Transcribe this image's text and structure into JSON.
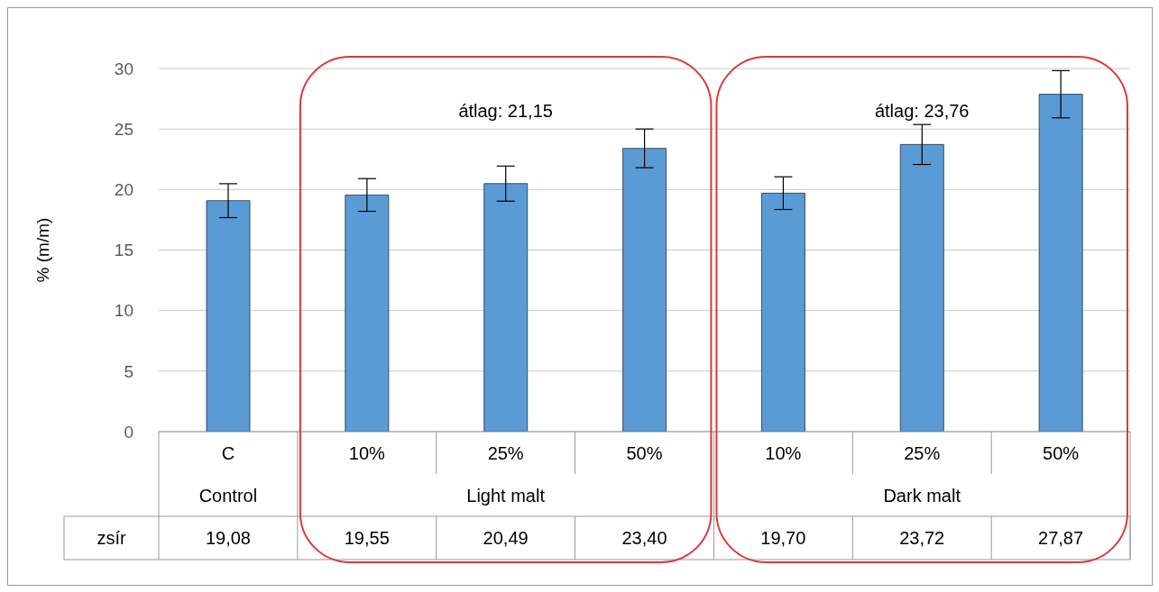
{
  "chart_data": {
    "type": "bar",
    "ylabel": "% (m/m)",
    "categories": [
      "C",
      "10%",
      "25%",
      "50%",
      "10%",
      "25%",
      "50%"
    ],
    "series": [
      {
        "name": "zsír",
        "color": "#5b9bd5",
        "values": [
          19.08,
          19.55,
          20.49,
          23.4,
          19.7,
          23.72,
          27.87
        ],
        "errors": [
          1.4,
          1.35,
          1.45,
          1.6,
          1.35,
          1.65,
          1.95
        ],
        "value_labels": [
          "19,08",
          "19,55",
          "20,49",
          "23,40",
          "19,70",
          "23,72",
          "27,87"
        ]
      }
    ],
    "annotations": [
      "Control",
      "Light malt",
      "Dark malt",
      "átlag: 21,15",
      "átlag: 23,76"
    ],
    "ylim": [
      0,
      30
    ],
    "yticks": [
      0,
      5,
      10,
      15,
      20,
      25,
      30
    ],
    "grid": "y"
  }
}
